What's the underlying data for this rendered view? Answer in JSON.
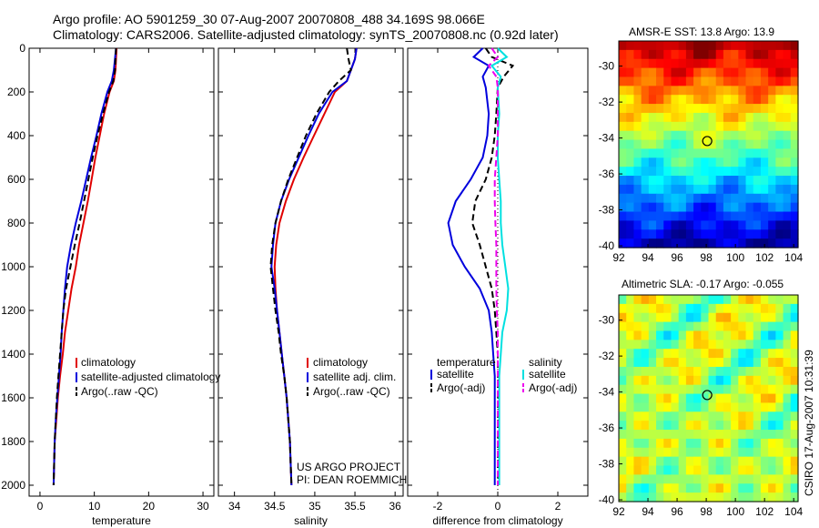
{
  "header": {
    "line1": "Argo profile: AO 5901259_30 07-Aug-2007 20070808_488 34.169S 98.066E",
    "line2": "Climatology: CARS2006. Satellite-adjusted climatology: synTS_20070808.nc (0.92d later)"
  },
  "stamp": "CSIRO 17-Aug-2007 10:31:39",
  "colors": {
    "red": "#e00000",
    "blue": "#0000dd",
    "black": "#000000",
    "cyan": "#00e0e0",
    "magenta": "#ee00ee"
  },
  "chart_data": [
    {
      "type": "line",
      "id": "temperature",
      "xlabel": "temperature",
      "ylabel": "",
      "xlim": [
        -2,
        32
      ],
      "ylim": [
        2050,
        0
      ],
      "xticks": [
        0,
        10,
        20,
        30
      ],
      "yticks": [
        0,
        200,
        400,
        600,
        800,
        1000,
        1200,
        1400,
        1600,
        1800,
        2000
      ],
      "legend": [
        "climatology",
        "satellite-adjusted climatology",
        "Argo(..raw -QC)"
      ],
      "series": [
        {
          "name": "climatology",
          "color": "red",
          "dash": "",
          "x": [
            14.1,
            14.0,
            13.9,
            13.6,
            12.8,
            11.8,
            11.0,
            10.2,
            9.5,
            8.8,
            8.0,
            7.2,
            6.6,
            5.8,
            5.2,
            4.6,
            4.2,
            3.7,
            3.3,
            3.0,
            2.7,
            2.6,
            2.5
          ],
          "y": [
            0,
            50,
            100,
            150,
            200,
            300,
            400,
            500,
            600,
            700,
            800,
            900,
            1000,
            1100,
            1200,
            1300,
            1400,
            1500,
            1600,
            1700,
            1800,
            1900,
            2000
          ]
        },
        {
          "name": "satellite-adjusted climatology",
          "color": "blue",
          "dash": "",
          "x": [
            14.0,
            13.8,
            13.6,
            13.2,
            12.4,
            11.3,
            10.4,
            9.4,
            8.5,
            7.6,
            6.6,
            5.7,
            5.0,
            4.6,
            4.3,
            4.0,
            3.8,
            3.5,
            3.2,
            2.9,
            2.7,
            2.6,
            2.5
          ],
          "y": [
            0,
            50,
            100,
            150,
            200,
            300,
            400,
            500,
            600,
            700,
            800,
            900,
            1000,
            1100,
            1200,
            1300,
            1400,
            1500,
            1600,
            1700,
            1800,
            1900,
            2000
          ]
        },
        {
          "name": "Argo(..raw -QC)",
          "color": "black",
          "dash": "7,4",
          "x": [
            14.0,
            13.9,
            13.8,
            13.5,
            12.7,
            11.6,
            10.6,
            9.7,
            8.9,
            8.1,
            7.3,
            6.4,
            5.6,
            4.8,
            4.3,
            4.0,
            3.7,
            3.4,
            3.1,
            2.9,
            2.7,
            2.6,
            2.5
          ],
          "y": [
            0,
            50,
            100,
            150,
            200,
            300,
            400,
            500,
            600,
            700,
            800,
            900,
            1000,
            1100,
            1200,
            1300,
            1400,
            1500,
            1600,
            1700,
            1800,
            1900,
            2000
          ]
        }
      ]
    },
    {
      "type": "line",
      "id": "salinity",
      "xlabel": "salinity",
      "ylabel": "",
      "xlim": [
        33.8,
        36.1
      ],
      "ylim": [
        2050,
        0
      ],
      "xticks": [
        34,
        34.5,
        35,
        35.5,
        36
      ],
      "yticks": [
        0,
        200,
        400,
        600,
        800,
        1000,
        1200,
        1400,
        1600,
        1800,
        2000
      ],
      "legend": [
        "climatology",
        "satellite adj. clim.",
        "Argo(..raw -QC)"
      ],
      "annotation": [
        "US ARGO PROJECT",
        "PI: DEAN ROEMMICH"
      ],
      "series": [
        {
          "name": "climatology",
          "color": "red",
          "dash": "",
          "x": [
            35.52,
            35.5,
            35.45,
            35.4,
            35.25,
            35.12,
            34.99,
            34.86,
            34.74,
            34.64,
            34.56,
            34.52,
            34.5,
            34.51,
            34.53,
            34.56,
            34.59,
            34.62,
            34.65,
            34.67,
            34.69,
            34.7,
            34.71
          ],
          "y": [
            0,
            50,
            100,
            150,
            200,
            300,
            400,
            500,
            600,
            700,
            800,
            900,
            1000,
            1100,
            1200,
            1300,
            1400,
            1500,
            1600,
            1700,
            1800,
            1900,
            2000
          ]
        },
        {
          "name": "satellite adj. clim.",
          "color": "blue",
          "dash": "",
          "x": [
            35.52,
            35.5,
            35.45,
            35.4,
            35.22,
            35.05,
            34.92,
            34.8,
            34.68,
            34.58,
            34.51,
            34.48,
            34.46,
            34.5,
            34.53,
            34.56,
            34.59,
            34.62,
            34.65,
            34.67,
            34.69,
            34.7,
            34.71
          ],
          "y": [
            0,
            50,
            100,
            150,
            200,
            300,
            400,
            500,
            600,
            700,
            800,
            900,
            1000,
            1100,
            1200,
            1300,
            1400,
            1500,
            1600,
            1700,
            1800,
            1900,
            2000
          ]
        },
        {
          "name": "Argo(..raw -QC)",
          "color": "black",
          "dash": "7,4",
          "x": [
            35.4,
            35.42,
            35.45,
            35.3,
            35.18,
            35.02,
            34.89,
            34.78,
            34.67,
            34.58,
            34.51,
            34.47,
            34.45,
            34.48,
            34.51,
            34.55,
            34.58,
            34.62,
            34.65,
            34.67,
            34.69,
            34.7,
            34.71
          ],
          "y": [
            0,
            50,
            100,
            150,
            200,
            300,
            400,
            500,
            600,
            700,
            800,
            900,
            1000,
            1100,
            1200,
            1300,
            1400,
            1500,
            1600,
            1700,
            1800,
            1900,
            2000
          ]
        }
      ]
    },
    {
      "type": "line",
      "id": "difference",
      "xlabel": "difference from climatology",
      "ylabel": "",
      "xlim": [
        -3,
        3
      ],
      "ylim": [
        2050,
        0
      ],
      "xticks": [
        -2,
        0,
        2
      ],
      "yticks": [
        0,
        200,
        400,
        600,
        800,
        1000,
        1200,
        1400,
        1600,
        1800,
        2000
      ],
      "legend_groups": [
        {
          "heading": "temperature",
          "items": [
            "satellite",
            "Argo(-adj)"
          ]
        },
        {
          "heading": "salinity",
          "items": [
            "satellite",
            "Argo(-adj)"
          ]
        }
      ],
      "series": [
        {
          "name": "temperature satellite",
          "color": "blue",
          "dash": "",
          "x": [
            -0.5,
            -0.8,
            -0.3,
            -0.5,
            -0.4,
            -0.3,
            -0.35,
            -0.5,
            -0.9,
            -1.4,
            -1.65,
            -1.5,
            -1.1,
            -0.6,
            -0.3,
            -0.2,
            -0.15,
            -0.1,
            -0.1,
            -0.1,
            -0.1,
            -0.1
          ],
          "y": [
            0,
            40,
            80,
            130,
            180,
            300,
            400,
            500,
            600,
            700,
            800,
            900,
            1000,
            1100,
            1200,
            1300,
            1400,
            1500,
            1600,
            1700,
            1800,
            2000
          ]
        },
        {
          "name": "temperature Argo(-adj)",
          "color": "black",
          "dash": "7,4",
          "x": [
            -0.4,
            -0.2,
            0.5,
            0.2,
            0.0,
            -0.05,
            -0.1,
            -0.2,
            -0.4,
            -0.75,
            -0.85,
            -0.6,
            -0.4,
            -0.2,
            -0.1,
            -0.05,
            0.0,
            0.0,
            0.0,
            0.0,
            0.0,
            0.0
          ],
          "y": [
            0,
            40,
            80,
            130,
            180,
            300,
            400,
            500,
            600,
            700,
            800,
            900,
            1000,
            1100,
            1200,
            1300,
            1400,
            1500,
            1600,
            1700,
            1800,
            2000
          ]
        },
        {
          "name": "salinity satellite",
          "color": "cyan",
          "dash": "",
          "x": [
            0.0,
            0.3,
            -0.2,
            0.1,
            0.0,
            0.05,
            0.0,
            0.0,
            0.05,
            0.1,
            0.1,
            0.15,
            0.25,
            0.35,
            0.3,
            0.15,
            0.1,
            0.05,
            0.05,
            0.05,
            0.05,
            0.05
          ],
          "y": [
            0,
            40,
            80,
            130,
            180,
            300,
            400,
            500,
            600,
            700,
            800,
            900,
            1000,
            1100,
            1200,
            1300,
            1400,
            1500,
            1600,
            1700,
            1800,
            2000
          ]
        },
        {
          "name": "salinity Argo(-adj)",
          "color": "magenta",
          "dash": "7,4",
          "x": [
            -0.2,
            0.0,
            -0.3,
            -0.05,
            0.0,
            0.0,
            0.0,
            -0.05,
            -0.1,
            -0.1,
            -0.08,
            -0.05,
            -0.05,
            -0.05,
            -0.03,
            0.0,
            0.0,
            0.0,
            0.0,
            0.0,
            0.0,
            0.0
          ],
          "y": [
            0,
            40,
            80,
            130,
            180,
            300,
            400,
            500,
            600,
            700,
            800,
            900,
            1000,
            1100,
            1200,
            1300,
            1400,
            1500,
            1600,
            1700,
            1800,
            2000
          ]
        }
      ]
    },
    {
      "type": "heatmap",
      "id": "sst_map",
      "title": "AMSR-E SST: 13.8 Argo: 13.9",
      "xlim": [
        92,
        104.3
      ],
      "ylim": [
        -40.1,
        -28.6
      ],
      "xticks": [
        92,
        94,
        96,
        98,
        100,
        102,
        104
      ],
      "yticks": [
        -30,
        -32,
        -34,
        -36,
        -38,
        -40
      ],
      "marker": [
        98.066,
        -34.169
      ]
    },
    {
      "type": "heatmap",
      "id": "sla_map",
      "title": "Altimetric SLA: -0.17 Argo: -0.055",
      "xlim": [
        92,
        104.3
      ],
      "ylim": [
        -40.1,
        -28.6
      ],
      "xticks": [
        92,
        94,
        96,
        98,
        100,
        102,
        104
      ],
      "yticks": [
        -30,
        -32,
        -34,
        -36,
        -38,
        -40
      ],
      "marker": [
        98.066,
        -34.169
      ]
    }
  ]
}
